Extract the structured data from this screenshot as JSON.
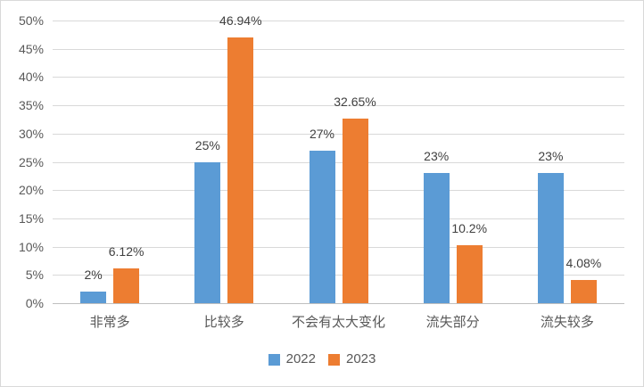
{
  "chart_data": {
    "type": "bar",
    "title": "",
    "xlabel": "",
    "ylabel": "",
    "categories": [
      "非常多",
      "比较多",
      "不会有太大变化",
      "流失部分",
      "流失较多"
    ],
    "series": [
      {
        "name": "2022",
        "color": "#5B9BD5",
        "values": [
          2,
          25,
          27,
          23,
          23
        ],
        "labels": [
          "2%",
          "25%",
          "27%",
          "23%",
          "23%"
        ]
      },
      {
        "name": "2023",
        "color": "#ED7D31",
        "values": [
          6.12,
          46.94,
          32.65,
          10.2,
          4.08
        ],
        "labels": [
          "6.12%",
          "46.94%",
          "32.65%",
          "10.2%",
          "4.08%"
        ]
      }
    ],
    "y_axis": {
      "min": 0,
      "max": 50,
      "step": 5,
      "tick_labels": [
        "0%",
        "5%",
        "10%",
        "15%",
        "20%",
        "25%",
        "30%",
        "35%",
        "40%",
        "45%",
        "50%"
      ]
    },
    "grid": true,
    "legend": {
      "position": "bottom-center",
      "entries": [
        "2022",
        "2023"
      ]
    },
    "colors": {
      "gridline": "#D9D9D9",
      "axis_line": "#BFBFBF",
      "axis_text": "#595959",
      "data_label_text": "#404040",
      "chart_border": "#D9D9D9",
      "background": "#FFFFFF"
    }
  }
}
